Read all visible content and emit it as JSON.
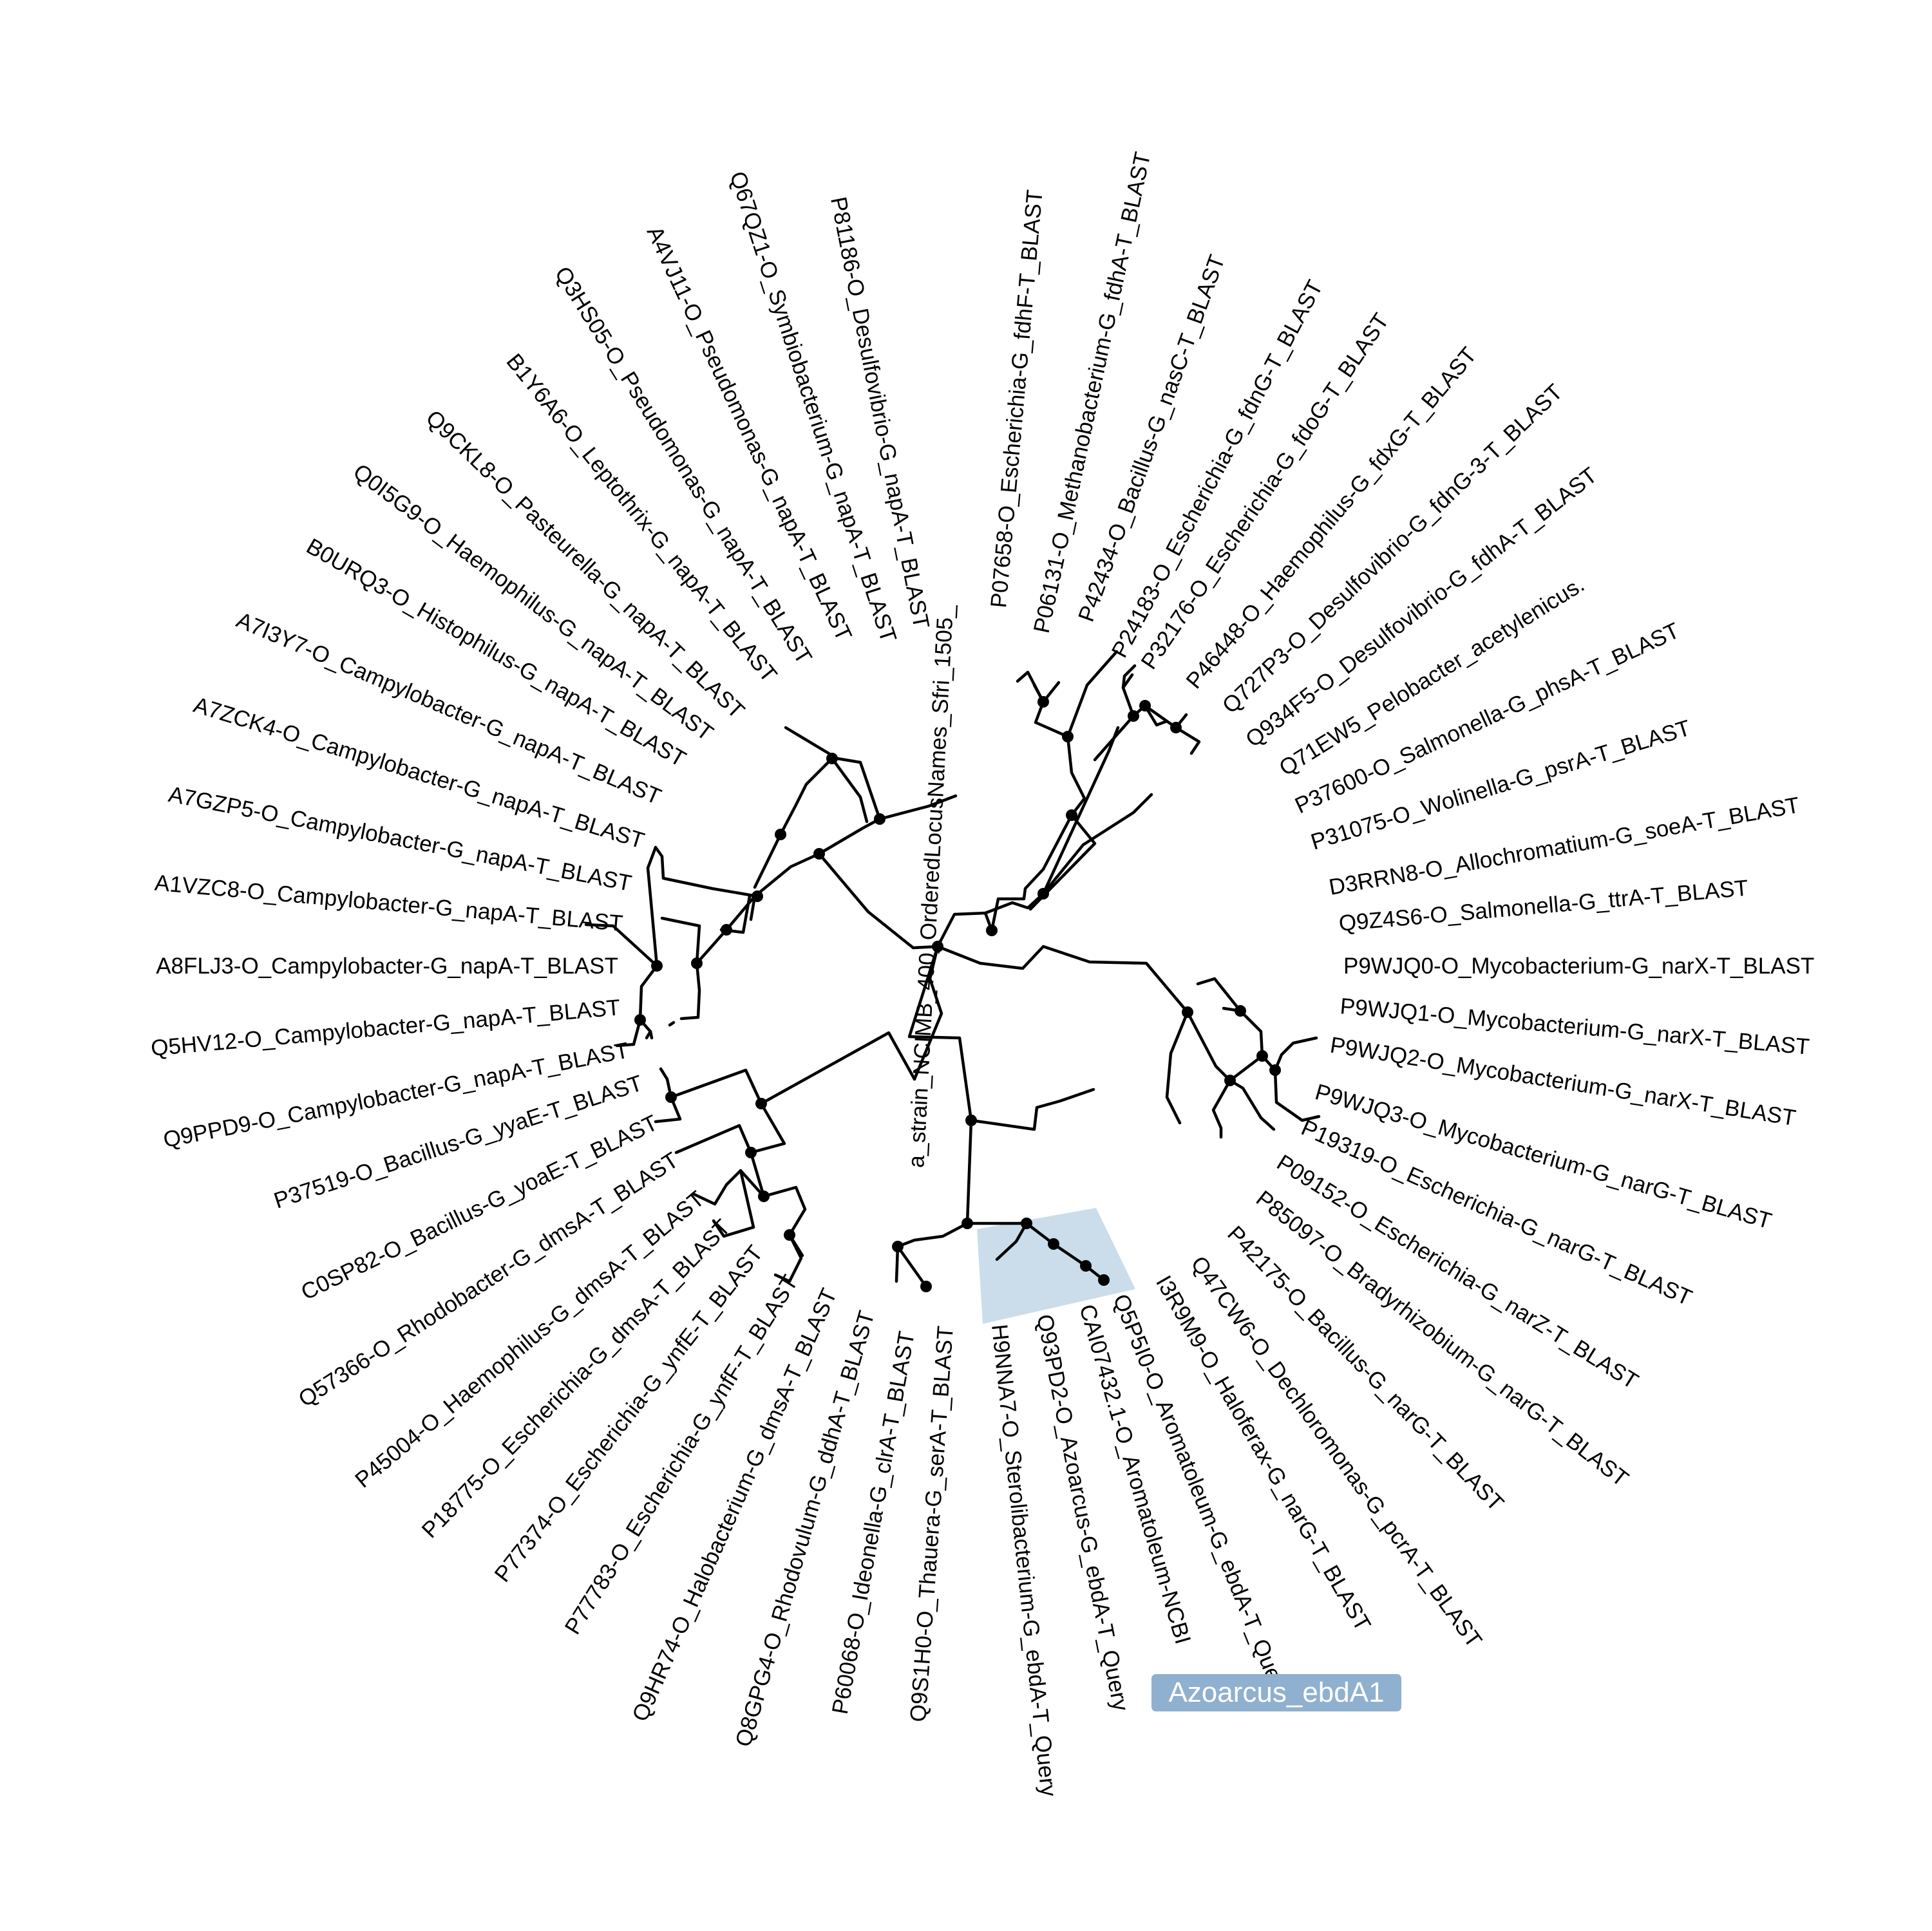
{
  "leaves": [
    {
      "id": "leaf-0",
      "label": "a_strain_NCIMB_400_OrderedLocusNames_Sfri_1505_"
    },
    {
      "id": "leaf-1",
      "label": "P07658-O_Escherichia-G_fdhF-T_BLAST"
    },
    {
      "id": "leaf-2",
      "label": "P06131-O_Methanobacterium-G_fdhA-T_BLAST"
    },
    {
      "id": "leaf-3",
      "label": "P42434-O_Bacillus-G_nasC-T_BLAST"
    },
    {
      "id": "leaf-4",
      "label": "P24183-O_Escherichia-G_fdnG-T_BLAST"
    },
    {
      "id": "leaf-5",
      "label": "P32176-O_Escherichia-G_fdoG-T_BLAST"
    },
    {
      "id": "leaf-6",
      "label": "P46448-O_Haemophilus-G_fdxG-T_BLAST"
    },
    {
      "id": "leaf-7",
      "label": "Q727P3-O_Desulfovibrio-G_fdnG-3-T_BLAST"
    },
    {
      "id": "leaf-8",
      "label": "Q934F5-O_Desulfovibrio-G_fdhA-T_BLAST"
    },
    {
      "id": "leaf-9",
      "label": "Q71EW5_Pelobacter_acetylenicus."
    },
    {
      "id": "leaf-10",
      "label": "P37600-O_Salmonella-G_phsA-T_BLAST"
    },
    {
      "id": "leaf-11",
      "label": "P31075-O_Wolinella-G_psrA-T_BLAST"
    },
    {
      "id": "leaf-12",
      "label": "D3RRN8-O_Allochromatium-G_soeA-T_BLAST"
    },
    {
      "id": "leaf-13",
      "label": "Q9Z4S6-O_Salmonella-G_ttrA-T_BLAST"
    },
    {
      "id": "leaf-14",
      "label": "P9WJQ0-O_Mycobacterium-G_narX-T_BLAST"
    },
    {
      "id": "leaf-15",
      "label": "P9WJQ1-O_Mycobacterium-G_narX-T_BLAST"
    },
    {
      "id": "leaf-16",
      "label": "P9WJQ2-O_Mycobacterium-G_narX-T_BLAST"
    },
    {
      "id": "leaf-17",
      "label": "P9WJQ3-O_Mycobacterium-G_narG-T_BLAST"
    },
    {
      "id": "leaf-18",
      "label": "P19319-O_Escherichia-G_narG-T_BLAST"
    },
    {
      "id": "leaf-19",
      "label": "P09152-O_Escherichia-G_narZ-T_BLAST"
    },
    {
      "id": "leaf-20",
      "label": "P85097-O_Bradyrhizobium-G_narG-T_BLAST"
    },
    {
      "id": "leaf-21",
      "label": "P42175-O_Bacillus-G_narG-T_BLAST"
    },
    {
      "id": "leaf-22",
      "label": "Q47CW6-O_Dechloromonas-G_pcrA-T_BLAST"
    },
    {
      "id": "leaf-23",
      "label": "I3R9M9-O_Haloferax-G_narG-T_BLAST"
    },
    {
      "id": "leaf-24",
      "label": "Q5P5I0-O_Aromatoleum-G_ebdA-T_Query"
    },
    {
      "id": "leaf-25",
      "label": "CAI07432.1-O_Aromatoleum-NCBI"
    },
    {
      "id": "leaf-26",
      "label": "Q93PD2-O_Azoarcus-G_ebdA-T_Query"
    },
    {
      "id": "leaf-27",
      "label": "H9NNA7-O_Sterolibacterium-G_ebdA-T_Query"
    },
    {
      "id": "leaf-28",
      "label": "Q9S1H0-O_Thauera-G_serA-T_BLAST"
    },
    {
      "id": "leaf-29",
      "label": "P60068-O_Ideonella-G_clrA-T_BLAST"
    },
    {
      "id": "leaf-30",
      "label": "Q8GPG4-O_Rhodovulum-G_ddhA-T_BLAST"
    },
    {
      "id": "leaf-31",
      "label": "Q9HR74-O_Halobacterium-G_dmsA-T_BLAST"
    },
    {
      "id": "leaf-32",
      "label": "P77783-O_Escherichia-G_ynfF-T_BLAST"
    },
    {
      "id": "leaf-33",
      "label": "P77374-O_Escherichia-G_ynfE-T_BLAST"
    },
    {
      "id": "leaf-34",
      "label": "P18775-O_Escherichia-G_dmsA-T_BLAST"
    },
    {
      "id": "leaf-35",
      "label": "P45004-O_Haemophilus-G_dmsA-T_BLAST"
    },
    {
      "id": "leaf-36",
      "label": "Q57366-O_Rhodobacter-G_dmsA-T_BLAST"
    },
    {
      "id": "leaf-37",
      "label": "C0SP82-O_Bacillus-G_yoaE-T_BLAST"
    },
    {
      "id": "leaf-38",
      "label": "P37519-O_Bacillus-G_yyaE-T_BLAST"
    },
    {
      "id": "leaf-39",
      "label": "Q9PPD9-O_Campylobacter-G_napA-T_BLAST"
    },
    {
      "id": "leaf-40",
      "label": "Q5HV12-O_Campylobacter-G_napA-T_BLAST"
    },
    {
      "id": "leaf-41",
      "label": "A8FLJ3-O_Campylobacter-G_napA-T_BLAST"
    },
    {
      "id": "leaf-42",
      "label": "A1VZC8-O_Campylobacter-G_napA-T_BLAST"
    },
    {
      "id": "leaf-43",
      "label": "A7GZP5-O_Campylobacter-G_napA-T_BLAST"
    },
    {
      "id": "leaf-44",
      "label": "A7ZCK4-O_Campylobacter-G_napA-T_BLAST"
    },
    {
      "id": "leaf-45",
      "label": "A7I3Y7-O_Campylobacter-G_napA-T_BLAST"
    },
    {
      "id": "leaf-46",
      "label": "B0URQ3-O_Histophilus-G_napA-T_BLAST"
    },
    {
      "id": "leaf-47",
      "label": "Q0I5G9-O_Haemophilus-G_napA-T_BLAST"
    },
    {
      "id": "leaf-48",
      "label": "Q9CKL8-O_Pasteurella-G_napA-T_BLAST"
    },
    {
      "id": "leaf-49",
      "label": "B1Y6A6-O_Leptothrix-G_napA-T_BLAST"
    },
    {
      "id": "leaf-50",
      "label": "Q3HS05-O_Pseudomonas-G_napA-T_BLAST"
    },
    {
      "id": "leaf-51",
      "label": "A4VJ11-O_Pseudomonas-G_napA-T_BLAST"
    },
    {
      "id": "leaf-52",
      "label": "Q67QZ1-O_Symbiobacterium-G_napA-T_BLAST"
    },
    {
      "id": "leaf-53",
      "label": "P81186-O_Desulfovibrio-G_napA-T_BLAST"
    }
  ],
  "highlight": {
    "clade_label": "Azoarcus_ebdA1",
    "fill_color": "#a9c4dc",
    "label_bg_color": "#8fb0cf"
  },
  "colors": {
    "branch": "#000000",
    "node": "#000000",
    "text": "#000000",
    "background": "#ffffff"
  }
}
